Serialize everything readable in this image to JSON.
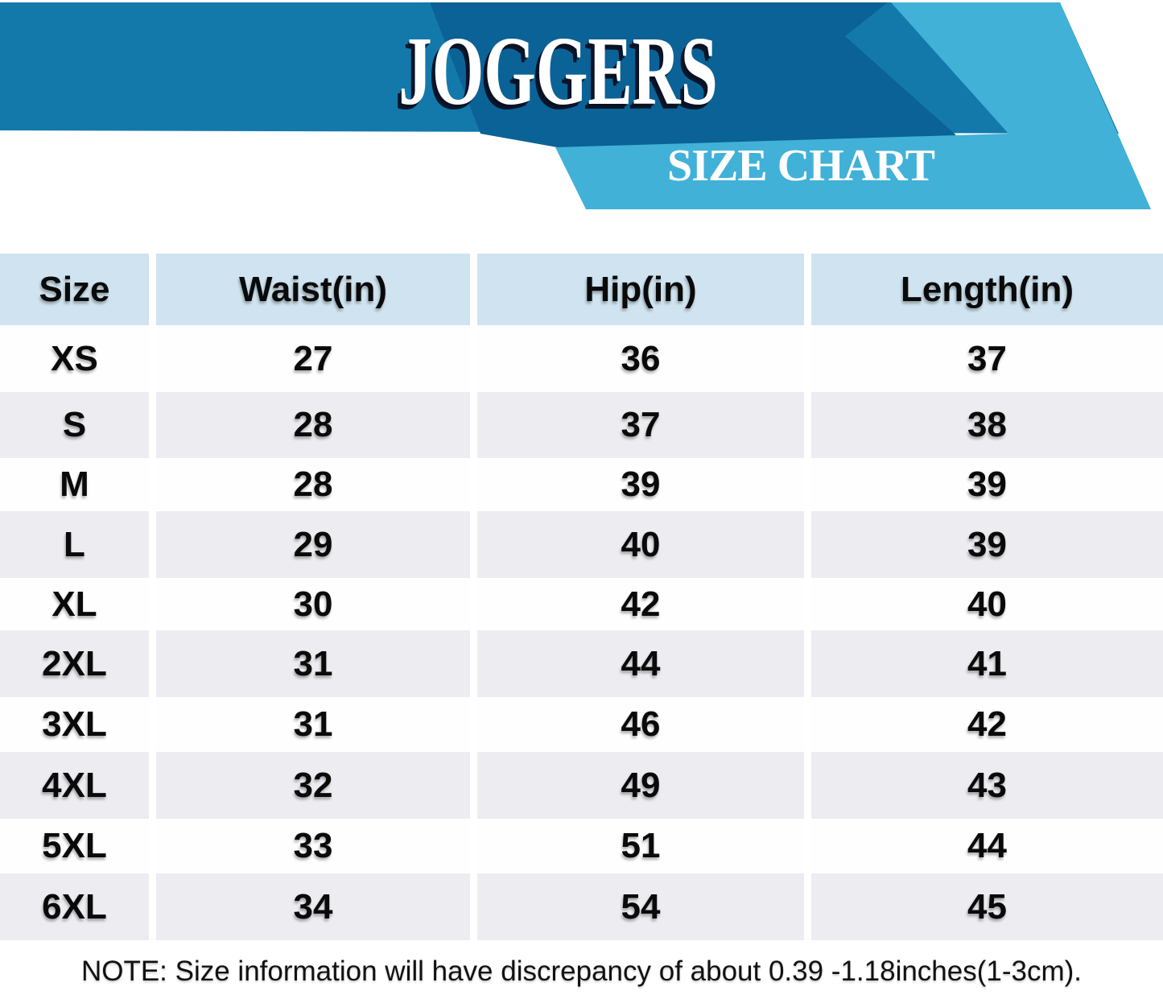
{
  "chart_data": {
    "type": "table",
    "title": "JOGGERS",
    "subtitle": "SIZE CHART",
    "columns": [
      "Size",
      "Waist(in)",
      "Hip(in)",
      "Length(in)"
    ],
    "rows": [
      {
        "size": "XS",
        "waist": "27",
        "hip": "36",
        "length": "37"
      },
      {
        "size": "S",
        "waist": "28",
        "hip": "37",
        "length": "38"
      },
      {
        "size": "M",
        "waist": "28",
        "hip": "39",
        "length": "39"
      },
      {
        "size": "L",
        "waist": "29",
        "hip": "40",
        "length": "39"
      },
      {
        "size": "XL",
        "waist": "30",
        "hip": "42",
        "length": "40"
      },
      {
        "size": "2XL",
        "waist": "31",
        "hip": "44",
        "length": "41"
      },
      {
        "size": "3XL",
        "waist": "31",
        "hip": "46",
        "length": "42"
      },
      {
        "size": "4XL",
        "waist": "32",
        "hip": "49",
        "length": "43"
      },
      {
        "size": "5XL",
        "waist": "33",
        "hip": "51",
        "length": "44"
      },
      {
        "size": "6XL",
        "waist": "34",
        "hip": "54",
        "length": "45"
      }
    ]
  },
  "note": "NOTE: Size information will have discrepancy of about 0.39 -1.18inches(1-3cm).",
  "colors": {
    "band": "#1379ab",
    "panel_dark": "#0b6296",
    "panel_light": "#41b1d7",
    "header_bg": "#cfe4f0",
    "row_alt": "#ededf1",
    "row_bg": "#fefefe",
    "text": "#0a0a0a"
  }
}
